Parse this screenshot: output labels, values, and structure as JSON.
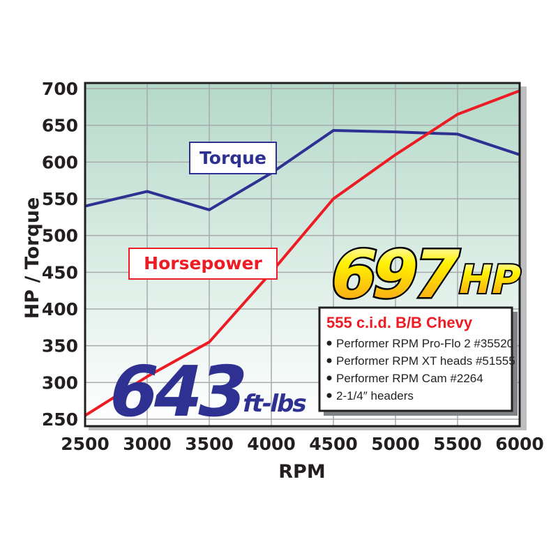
{
  "chart_data": {
    "type": "line",
    "title": "",
    "xlabel": "RPM",
    "ylabel": "HP / Torque",
    "xlim": [
      2500,
      6000
    ],
    "ylim": [
      250,
      700
    ],
    "x_ticks": [
      "2500",
      "3000",
      "3500",
      "4000",
      "4500",
      "5000",
      "5500",
      "6000"
    ],
    "y_ticks": [
      "700",
      "650",
      "600",
      "550",
      "500",
      "450",
      "400",
      "350",
      "300",
      "250"
    ],
    "grid": true,
    "x": [
      2500,
      3000,
      3500,
      4000,
      4500,
      5000,
      5500,
      6000
    ],
    "series": [
      {
        "name": "Torque",
        "color": "#2e3192",
        "values": [
          540,
          560,
          535,
          585,
          643,
          641,
          638,
          610
        ]
      },
      {
        "name": "Horsepower",
        "color": "#ed1c24",
        "values": [
          255,
          308,
          355,
          450,
          550,
          610,
          665,
          697
        ]
      }
    ],
    "annotations": {
      "peak_hp_value": "697",
      "peak_hp_unit": "HP",
      "peak_torque_value": "643",
      "peak_torque_unit": "ft-lbs"
    },
    "info_box": {
      "title": "555 c.i.d. B/B Chevy",
      "items": [
        "Performer RPM Pro-Flo 2 #35520",
        "Performer RPM XT heads #51555",
        "Performer RPM Cam #2264",
        "2-1/4″ headers"
      ]
    },
    "colors": {
      "plot_top": "#b4d9c9",
      "plot_bottom": "#ffffff",
      "grid": "#a7a9ac"
    }
  }
}
